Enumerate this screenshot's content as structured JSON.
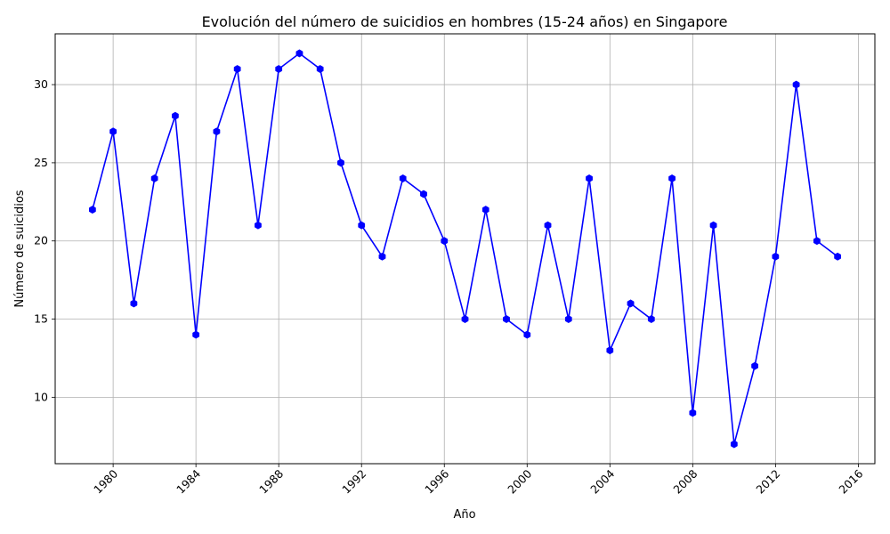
{
  "chart_data": {
    "type": "line",
    "title": "Evolución del número de suicidios en hombres (15-24 años) en Singapore",
    "xlabel": "Año",
    "ylabel": "Número de suicidios",
    "x": [
      1979,
      1980,
      1981,
      1982,
      1983,
      1984,
      1985,
      1986,
      1987,
      1988,
      1989,
      1990,
      1991,
      1992,
      1993,
      1994,
      1995,
      1996,
      1997,
      1998,
      1999,
      2000,
      2001,
      2002,
      2003,
      2004,
      2005,
      2006,
      2007,
      2008,
      2009,
      2010,
      2011,
      2012,
      2013,
      2014,
      2015
    ],
    "series": [
      {
        "values": [
          22,
          27,
          16,
          24,
          28,
          14,
          27,
          31,
          21,
          31,
          32,
          31,
          25,
          21,
          19,
          24,
          23,
          20,
          15,
          22,
          15,
          14,
          21,
          15,
          24,
          13,
          16,
          15,
          24,
          9,
          21,
          7,
          12,
          19,
          30,
          20,
          19
        ],
        "color": "#0000ff",
        "marker": "hexagon"
      }
    ],
    "xlim": [
      1977.2,
      2016.8
    ],
    "ylim": [
      5.75,
      33.25
    ],
    "xticks": [
      "1980",
      "1984",
      "1988",
      "1992",
      "1996",
      "2000",
      "2004",
      "2008",
      "2012",
      "2016"
    ],
    "yticks": [
      "10",
      "15",
      "20",
      "25",
      "30"
    ],
    "xtick_rotation": 45,
    "grid": true,
    "legend": false
  }
}
